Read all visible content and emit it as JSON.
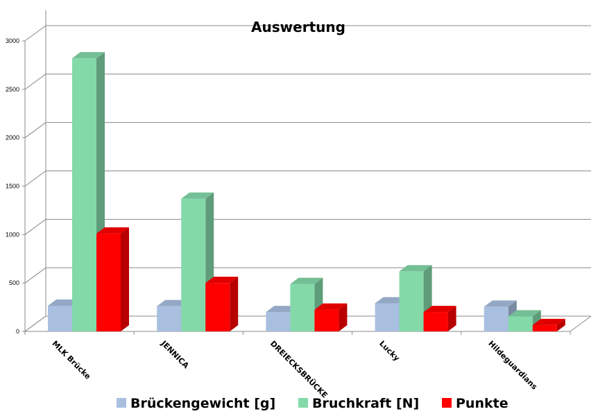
{
  "chart_data": {
    "type": "bar",
    "title": "Auswertung",
    "categories": [
      "MLK Brücke",
      "JENNICA",
      "DREIECKSBRÜCKE",
      "Lucky",
      "Hildeguardians"
    ],
    "series": [
      {
        "name": "Brückengewicht [g]",
        "color": "#a8bfe0",
        "values": [
          265,
          260,
          200,
          290,
          255
        ]
      },
      {
        "name": "Bruchkraft [N]",
        "color": "#84d9a9",
        "values": [
          2820,
          1370,
          490,
          620,
          155
        ]
      },
      {
        "name": "Punkte",
        "color": "#ff0000",
        "values": [
          1010,
          500,
          225,
          200,
          65
        ]
      }
    ],
    "ylim": [
      0,
      3000
    ],
    "yticks": [
      0,
      500,
      1000,
      1500,
      2000,
      2500,
      3000
    ],
    "grid": true,
    "legend_position": "bottom"
  }
}
